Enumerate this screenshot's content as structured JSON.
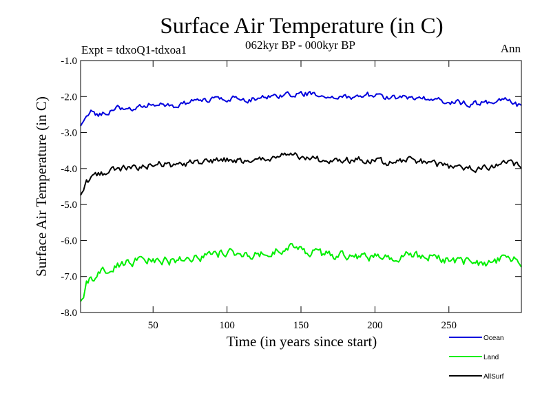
{
  "chart_data": {
    "type": "line",
    "title": "Surface Air Temperature (in C)",
    "subtitle": "062kyr BP - 000kyr BP",
    "experiment_label": "Expt = tdxoQ1-tdxoa1",
    "season_label": "Ann",
    "xlabel": "Time (in years since start)",
    "ylabel": "Surface Air Temperature (in C)",
    "xlim": [
      1,
      299
    ],
    "ylim": [
      -8.0,
      -1.0
    ],
    "x_ticks": [
      50,
      100,
      150,
      200,
      250
    ],
    "x_tick_labels": [
      "50",
      "100",
      "150",
      "200",
      "250"
    ],
    "y_ticks": [
      -1.0,
      -2.0,
      -3.0,
      -4.0,
      -5.0,
      -6.0,
      -7.0,
      -8.0
    ],
    "y_tick_labels": [
      "-1.0",
      "-2.0",
      "-3.0",
      "-4.0",
      "-5.0",
      "-6.0",
      "-7.0",
      "-8.0"
    ],
    "grid": false,
    "legend_position": "bottom-right",
    "series": [
      {
        "name": "Ocean",
        "color": "#0000dd",
        "anchors": [
          [
            1,
            -2.82
          ],
          [
            3,
            -2.7
          ],
          [
            5,
            -2.55
          ],
          [
            8,
            -2.4
          ],
          [
            12,
            -2.5
          ],
          [
            18,
            -2.45
          ],
          [
            25,
            -2.3
          ],
          [
            35,
            -2.35
          ],
          [
            45,
            -2.25
          ],
          [
            55,
            -2.15
          ],
          [
            65,
            -2.3
          ],
          [
            75,
            -2.15
          ],
          [
            90,
            -2.1
          ],
          [
            100,
            -2.05
          ],
          [
            115,
            -2.08
          ],
          [
            130,
            -2.0
          ],
          [
            140,
            -1.97
          ],
          [
            155,
            -1.92
          ],
          [
            170,
            -2.05
          ],
          [
            185,
            -2.0
          ],
          [
            195,
            -1.95
          ],
          [
            210,
            -2.05
          ],
          [
            225,
            -2.0
          ],
          [
            235,
            -2.05
          ],
          [
            250,
            -2.15
          ],
          [
            265,
            -2.2
          ],
          [
            280,
            -2.15
          ],
          [
            290,
            -2.1
          ],
          [
            299,
            -2.3
          ]
        ],
        "noise_amplitude": 0.12
      },
      {
        "name": "Land",
        "color": "#00ee00",
        "anchors": [
          [
            1,
            -7.7
          ],
          [
            3,
            -7.6
          ],
          [
            5,
            -7.15
          ],
          [
            8,
            -7.1
          ],
          [
            12,
            -7.0
          ],
          [
            18,
            -6.85
          ],
          [
            25,
            -6.65
          ],
          [
            35,
            -6.6
          ],
          [
            45,
            -6.55
          ],
          [
            55,
            -6.6
          ],
          [
            65,
            -6.55
          ],
          [
            75,
            -6.5
          ],
          [
            90,
            -6.4
          ],
          [
            100,
            -6.3
          ],
          [
            115,
            -6.45
          ],
          [
            130,
            -6.35
          ],
          [
            140,
            -6.2
          ],
          [
            155,
            -6.3
          ],
          [
            170,
            -6.4
          ],
          [
            185,
            -6.4
          ],
          [
            195,
            -6.45
          ],
          [
            210,
            -6.5
          ],
          [
            225,
            -6.35
          ],
          [
            235,
            -6.45
          ],
          [
            250,
            -6.55
          ],
          [
            265,
            -6.6
          ],
          [
            280,
            -6.65
          ],
          [
            290,
            -6.4
          ],
          [
            299,
            -6.6
          ]
        ],
        "noise_amplitude": 0.2
      },
      {
        "name": "AllSurf",
        "color": "#000000",
        "anchors": [
          [
            1,
            -4.75
          ],
          [
            3,
            -4.6
          ],
          [
            5,
            -4.3
          ],
          [
            8,
            -4.25
          ],
          [
            12,
            -4.2
          ],
          [
            18,
            -4.1
          ],
          [
            25,
            -4.0
          ],
          [
            35,
            -4.0
          ],
          [
            45,
            -3.95
          ],
          [
            55,
            -3.85
          ],
          [
            65,
            -3.95
          ],
          [
            75,
            -3.85
          ],
          [
            90,
            -3.8
          ],
          [
            100,
            -3.75
          ],
          [
            115,
            -3.8
          ],
          [
            130,
            -3.75
          ],
          [
            140,
            -3.6
          ],
          [
            155,
            -3.7
          ],
          [
            170,
            -3.8
          ],
          [
            185,
            -3.75
          ],
          [
            195,
            -3.75
          ],
          [
            210,
            -3.85
          ],
          [
            225,
            -3.75
          ],
          [
            235,
            -3.85
          ],
          [
            250,
            -3.95
          ],
          [
            265,
            -4.0
          ],
          [
            280,
            -3.95
          ],
          [
            290,
            -3.75
          ],
          [
            299,
            -4.0
          ]
        ],
        "noise_amplitude": 0.14
      }
    ]
  }
}
